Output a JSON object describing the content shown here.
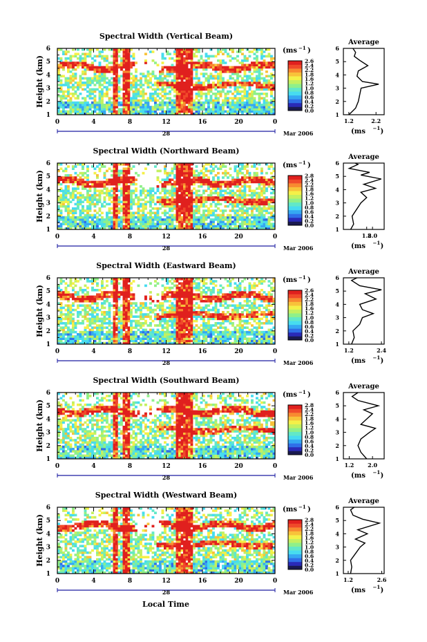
{
  "figure": {
    "xlabel": "Local Time",
    "month_label": "Mar 2006",
    "day_label": "28",
    "unit_label": "(ms",
    "unit_exp": "−1",
    "unit_close": ")",
    "average_title": "Average",
    "colors": [
      "#1a1a50",
      "#2a2ab8",
      "#2f6fe8",
      "#35a8f2",
      "#47dcf0",
      "#62e8c8",
      "#8ff08a",
      "#c4f060",
      "#f4f048",
      "#f8c23a",
      "#f88a30",
      "#f04a2a",
      "#e0201e"
    ]
  },
  "chart_data": [
    {
      "type": "heatmap",
      "title": "Spectral Width (Vertical Beam)",
      "ylabel": "Height (km)",
      "yticks": [
        "1",
        "2",
        "3",
        "4",
        "5",
        "6"
      ],
      "xticks": [
        "0",
        "4",
        "8",
        "12",
        "16",
        "20",
        "0"
      ],
      "xlim": [
        0,
        24
      ],
      "ylim": [
        1,
        6
      ],
      "colorbar_ticks": [
        "2.6",
        "2.4",
        "2.2",
        "1.8",
        "1.6",
        "1.2",
        "1.0",
        "0.8",
        "0.6",
        "0.4",
        "0.2",
        "0.0"
      ],
      "average": {
        "title": "Average",
        "xticks": [
          "1.2",
          "2.2"
        ],
        "xlim": [
          1.0,
          2.5
        ],
        "yticks": [
          "1",
          "2",
          "3",
          "4",
          "5",
          "6"
        ],
        "xlabel": "(ms",
        "profile": [
          [
            1.2,
            1.0
          ],
          [
            1.3,
            1.2
          ],
          [
            1.45,
            1.5
          ],
          [
            1.55,
            2.0
          ],
          [
            1.6,
            2.5
          ],
          [
            1.65,
            3.0
          ],
          [
            2.3,
            3.3
          ],
          [
            1.7,
            3.5
          ],
          [
            1.5,
            3.9
          ],
          [
            1.55,
            4.3
          ],
          [
            1.9,
            4.7
          ],
          [
            1.6,
            5.1
          ],
          [
            1.4,
            5.4
          ],
          [
            1.45,
            5.7
          ],
          [
            1.35,
            6.0
          ]
        ]
      }
    },
    {
      "type": "heatmap",
      "title": "Spectral Width (Northward Beam)",
      "ylabel": "Height (km)",
      "yticks": [
        "1",
        "2",
        "3",
        "4",
        "5",
        "6"
      ],
      "xticks": [
        "0",
        "4",
        "8",
        "12",
        "16",
        "20",
        "0"
      ],
      "xlim": [
        0,
        24
      ],
      "ylim": [
        1,
        6
      ],
      "colorbar_ticks": [
        "2.8",
        "2.4",
        "2.2",
        "1.8",
        "1.6",
        "1.2",
        "1.0",
        "0.8",
        "0.6",
        "0.4",
        "0.2",
        "0.0"
      ],
      "average": {
        "title": "Average",
        "xticks": [
          "1.8",
          "2.0"
        ],
        "xlim": [
          1.0,
          2.4
        ],
        "yticks": [
          "1",
          "2",
          "3",
          "4",
          "5",
          "6"
        ],
        "xlabel": "(ms",
        "profile": [
          [
            1.25,
            1.0
          ],
          [
            1.35,
            1.4
          ],
          [
            1.3,
            2.0
          ],
          [
            1.45,
            2.5
          ],
          [
            1.6,
            3.0
          ],
          [
            1.8,
            3.4
          ],
          [
            1.6,
            3.8
          ],
          [
            2.1,
            4.1
          ],
          [
            1.7,
            4.4
          ],
          [
            2.3,
            4.8
          ],
          [
            1.6,
            5.1
          ],
          [
            1.9,
            5.3
          ],
          [
            1.2,
            5.6
          ],
          [
            1.5,
            5.9
          ],
          [
            1.4,
            6.0
          ]
        ]
      }
    },
    {
      "type": "heatmap",
      "title": "Spectral Width (Eastward Beam)",
      "ylabel": "Height (km)",
      "yticks": [
        "1",
        "2",
        "3",
        "4",
        "5",
        "6"
      ],
      "xticks": [
        "0",
        "4",
        "8",
        "12",
        "16",
        "20",
        "0"
      ],
      "xlim": [
        0,
        24
      ],
      "ylim": [
        1,
        6
      ],
      "colorbar_ticks": [
        "2.6",
        "2.4",
        "2.2",
        "1.8",
        "1.6",
        "1.2",
        "1.0",
        "0.8",
        "0.6",
        "0.4",
        "0.2",
        "0.0"
      ],
      "average": {
        "title": "Average",
        "xticks": [
          "1.2",
          "2.4"
        ],
        "xlim": [
          1.0,
          2.5
        ],
        "yticks": [
          "1",
          "2",
          "3",
          "4",
          "5",
          "6"
        ],
        "xlabel": "(ms",
        "profile": [
          [
            1.3,
            1.0
          ],
          [
            1.4,
            1.5
          ],
          [
            1.35,
            2.0
          ],
          [
            1.6,
            2.5
          ],
          [
            1.7,
            3.0
          ],
          [
            2.1,
            3.3
          ],
          [
            1.7,
            3.6
          ],
          [
            1.6,
            4.0
          ],
          [
            2.2,
            4.4
          ],
          [
            1.8,
            4.8
          ],
          [
            2.4,
            5.1
          ],
          [
            1.6,
            5.4
          ],
          [
            1.3,
            5.8
          ],
          [
            1.5,
            6.0
          ]
        ]
      }
    },
    {
      "type": "heatmap",
      "title": "Spectral Width (Southward Beam)",
      "ylabel": "Height (km)",
      "yticks": [
        "1",
        "2",
        "3",
        "4",
        "5",
        "6"
      ],
      "xticks": [
        "0",
        "4",
        "8",
        "12",
        "16",
        "20",
        "0"
      ],
      "xlim": [
        0,
        24
      ],
      "ylim": [
        1,
        6
      ],
      "colorbar_ticks": [
        "2.8",
        "2.4",
        "2.2",
        "1.8",
        "1.6",
        "1.2",
        "1.0",
        "0.8",
        "0.6",
        "0.4",
        "0.2",
        "0.0"
      ],
      "average": {
        "title": "Average",
        "xticks": [
          "1.2",
          "2.0"
        ],
        "xlim": [
          1.0,
          2.4
        ],
        "yticks": [
          "1",
          "2",
          "3",
          "4",
          "5",
          "6"
        ],
        "xlabel": "(ms",
        "profile": [
          [
            1.8,
            1.0
          ],
          [
            1.6,
            1.5
          ],
          [
            1.5,
            2.0
          ],
          [
            1.6,
            2.5
          ],
          [
            1.9,
            3.0
          ],
          [
            2.1,
            3.3
          ],
          [
            1.6,
            3.6
          ],
          [
            1.8,
            4.0
          ],
          [
            2.0,
            4.4
          ],
          [
            1.7,
            4.7
          ],
          [
            2.2,
            5.0
          ],
          [
            1.5,
            5.4
          ],
          [
            1.3,
            5.7
          ],
          [
            1.5,
            6.0
          ]
        ]
      }
    },
    {
      "type": "heatmap",
      "title": "Spectral Width (Westward Beam)",
      "ylabel": "Height (km)",
      "yticks": [
        "1",
        "2",
        "3",
        "4",
        "5",
        "6"
      ],
      "xticks": [
        "0",
        "4",
        "8",
        "12",
        "16",
        "20",
        "0"
      ],
      "xlim": [
        0,
        24
      ],
      "ylim": [
        1,
        6
      ],
      "colorbar_ticks": [
        "2.8",
        "2.4",
        "2.2",
        "1.8",
        "1.6",
        "1.2",
        "1.0",
        "0.8",
        "0.6",
        "0.4",
        "0.2",
        "0.0"
      ],
      "average": {
        "title": "Average",
        "xticks": [
          "1.2",
          "2.6"
        ],
        "xlim": [
          1.0,
          2.7
        ],
        "yticks": [
          "1",
          "2",
          "3",
          "4",
          "5",
          "6"
        ],
        "xlabel": "(ms",
        "profile": [
          [
            1.3,
            1.0
          ],
          [
            1.35,
            1.5
          ],
          [
            1.3,
            2.0
          ],
          [
            1.5,
            2.5
          ],
          [
            1.7,
            3.0
          ],
          [
            1.9,
            3.3
          ],
          [
            1.5,
            3.6
          ],
          [
            2.0,
            4.0
          ],
          [
            1.6,
            4.3
          ],
          [
            2.5,
            4.8
          ],
          [
            1.8,
            5.1
          ],
          [
            1.4,
            5.4
          ],
          [
            1.3,
            5.8
          ],
          [
            1.45,
            6.0
          ]
        ]
      }
    }
  ]
}
